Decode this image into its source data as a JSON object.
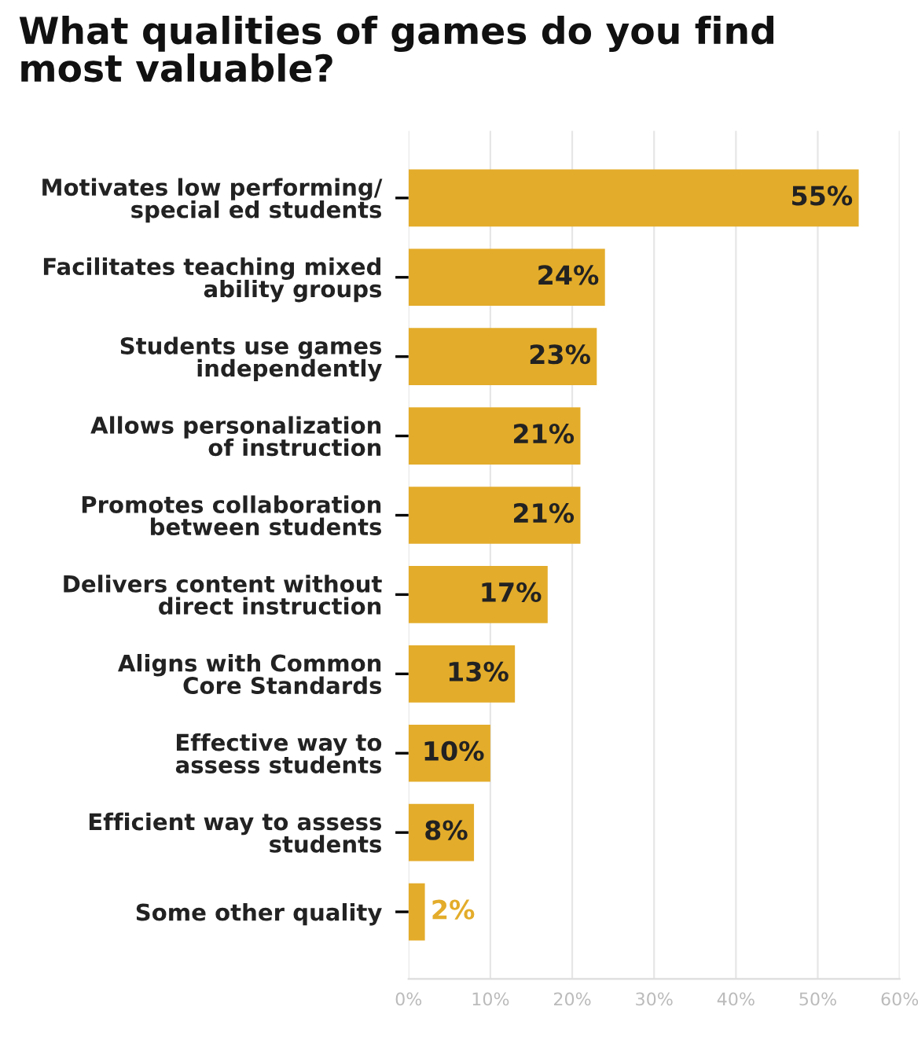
{
  "chart_data": {
    "type": "bar",
    "orientation": "horizontal",
    "title": "What qualities of games do you find\nmost valuable?",
    "categories": [
      "Motivates low performing/\nspecial ed students",
      "Facilitates teaching mixed\nability groups",
      "Students use games\nindependently",
      "Allows personalization\nof instruction",
      "Promotes collaboration\nbetween students",
      "Delivers content without\ndirect instruction",
      "Aligns with Common\nCore Standards",
      "Effective way to\nassess students",
      "Efficient way to assess\nstudents",
      "Some other quality"
    ],
    "values": [
      55,
      24,
      23,
      21,
      21,
      17,
      13,
      10,
      8,
      2
    ],
    "value_labels": [
      "55%",
      "24%",
      "23%",
      "21%",
      "21%",
      "17%",
      "13%",
      "10%",
      "8%",
      "2%"
    ],
    "color": "#e3ac2a",
    "xlim": [
      0,
      60
    ],
    "xticks": [
      {
        "value": 0,
        "label": "0%"
      },
      {
        "value": 10,
        "label": "10%"
      },
      {
        "value": 20,
        "label": "20%"
      },
      {
        "value": 30,
        "label": "30%"
      },
      {
        "value": 40,
        "label": "40%"
      },
      {
        "value": 50,
        "label": "50%"
      },
      {
        "value": 60,
        "label": "60%"
      }
    ],
    "grid": "x"
  }
}
